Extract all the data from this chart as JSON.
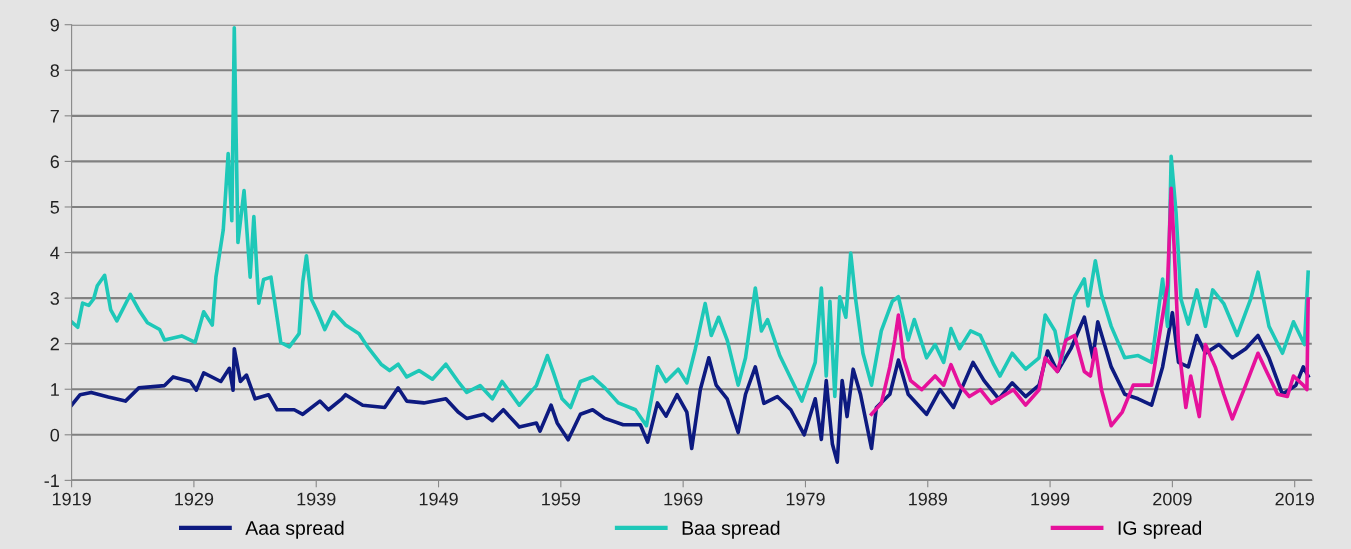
{
  "chart_data": {
    "type": "line",
    "xlim": [
      1919,
      2020.4
    ],
    "xticks": [
      1919,
      1929,
      1939,
      1949,
      1959,
      1969,
      1979,
      1989,
      1999,
      2009,
      2019
    ],
    "ylim": [
      -1,
      9
    ],
    "yticks": [
      -1,
      0,
      1,
      2,
      3,
      4,
      5,
      6,
      7,
      8,
      9
    ],
    "grid": "y",
    "legend": "bottom",
    "line_style": "solid",
    "marker": "none",
    "series": [
      {
        "name": "Aaa spread",
        "color": "#0d1a80",
        "x": [
          1919.0,
          1919.7,
          1920.6,
          1922.0,
          1923.4,
          1924.5,
          1926.6,
          1927.3,
          1928.7,
          1929.2,
          1929.8,
          1931.2,
          1931.9,
          1932.2,
          1932.3,
          1932.8,
          1933.3,
          1934.0,
          1935.1,
          1935.8,
          1937.2,
          1937.9,
          1939.3,
          1940.0,
          1941.1,
          1941.4,
          1942.8,
          1944.6,
          1945.7,
          1946.4,
          1947.8,
          1949.6,
          1950.6,
          1951.3,
          1952.7,
          1953.4,
          1954.3,
          1955.6,
          1957.0,
          1957.3,
          1958.2,
          1958.7,
          1959.6,
          1960.6,
          1961.6,
          1962.6,
          1964.1,
          1965.5,
          1966.1,
          1966.9,
          1967.6,
          1968.5,
          1969.3,
          1969.7,
          1970.4,
          1971.1,
          1971.7,
          1972.6,
          1973.5,
          1974.1,
          1974.9,
          1975.6,
          1976.7,
          1977.8,
          1978.9,
          1979.8,
          1980.3,
          1980.7,
          1981.2,
          1981.6,
          1982.0,
          1982.4,
          1982.9,
          1983.5,
          1984.4,
          1984.8,
          1985.9,
          1986.6,
          1987.4,
          1988.9,
          1990.0,
          1991.1,
          1992.7,
          1993.6,
          1994.8,
          1995.9,
          1997.0,
          1998.1,
          1998.8,
          1999.6,
          2000.7,
          2001.8,
          2002.5,
          2002.9,
          2004.0,
          2005.1,
          2006.2,
          2007.3,
          2008.2,
          2009.0,
          2009.5,
          2010.3,
          2011.0,
          2011.7,
          2012.8,
          2013.9,
          2015.0,
          2016.0,
          2016.9,
          2018.0,
          2019.1,
          2019.7,
          2020.1
        ],
        "values": [
          0.65,
          0.88,
          0.93,
          0.83,
          0.74,
          1.03,
          1.08,
          1.27,
          1.17,
          0.98,
          1.36,
          1.17,
          1.46,
          0.98,
          1.89,
          1.17,
          1.31,
          0.79,
          0.88,
          0.55,
          0.55,
          0.45,
          0.74,
          0.55,
          0.79,
          0.88,
          0.65,
          0.6,
          1.03,
          0.74,
          0.7,
          0.79,
          0.5,
          0.36,
          0.45,
          0.31,
          0.55,
          0.17,
          0.26,
          0.08,
          0.65,
          0.26,
          -0.11,
          0.45,
          0.55,
          0.36,
          0.22,
          0.22,
          -0.16,
          0.7,
          0.41,
          0.88,
          0.5,
          -0.3,
          0.99,
          1.69,
          1.09,
          0.79,
          0.05,
          0.89,
          1.49,
          0.69,
          0.84,
          0.55,
          0.0,
          0.79,
          -0.1,
          1.19,
          -0.2,
          -0.6,
          1.19,
          0.4,
          1.44,
          0.89,
          -0.3,
          0.6,
          0.89,
          1.64,
          0.89,
          0.45,
          0.99,
          0.6,
          1.59,
          1.19,
          0.79,
          1.14,
          0.84,
          1.09,
          1.84,
          1.39,
          1.89,
          2.58,
          1.69,
          2.48,
          1.49,
          0.89,
          0.79,
          0.65,
          1.49,
          2.68,
          1.59,
          1.49,
          2.18,
          1.79,
          1.98,
          1.69,
          1.89,
          2.18,
          1.69,
          0.89,
          1.09,
          1.49,
          1.29
        ]
      },
      {
        "name": "Baa spread",
        "color": "#1ec8b8",
        "x": [
          1919.0,
          1919.5,
          1919.9,
          1920.4,
          1920.8,
          1921.1,
          1921.7,
          1922.2,
          1922.7,
          1923.8,
          1924.5,
          1925.2,
          1926.2,
          1926.6,
          1928.0,
          1929.1,
          1929.8,
          1930.5,
          1930.8,
          1931.4,
          1931.8,
          1932.1,
          1932.3,
          1932.6,
          1933.1,
          1933.6,
          1933.9,
          1934.3,
          1934.7,
          1935.3,
          1936.1,
          1936.8,
          1937.6,
          1937.9,
          1938.2,
          1938.6,
          1939.1,
          1939.7,
          1940.4,
          1941.4,
          1942.5,
          1943.2,
          1944.3,
          1945.0,
          1945.7,
          1946.4,
          1947.4,
          1948.5,
          1949.6,
          1950.6,
          1951.3,
          1952.4,
          1953.4,
          1954.2,
          1955.6,
          1957.0,
          1957.9,
          1958.4,
          1959.1,
          1959.8,
          1960.6,
          1961.6,
          1962.6,
          1963.7,
          1965.1,
          1966.0,
          1966.9,
          1967.6,
          1968.6,
          1969.3,
          1970.0,
          1970.8,
          1971.3,
          1971.9,
          1972.6,
          1973.5,
          1974.1,
          1974.9,
          1975.4,
          1975.9,
          1976.9,
          1978.7,
          1979.8,
          1980.3,
          1980.7,
          1981.0,
          1981.4,
          1981.8,
          1982.3,
          1982.7,
          1983.1,
          1983.7,
          1984.4,
          1985.2,
          1986.1,
          1986.6,
          1987.4,
          1987.9,
          1988.9,
          1989.6,
          1990.3,
          1990.9,
          1991.6,
          1992.5,
          1993.3,
          1994.4,
          1994.9,
          1995.9,
          1997.0,
          1998.1,
          1998.6,
          1999.4,
          1999.9,
          2001.0,
          2001.8,
          2002.1,
          2002.7,
          2003.2,
          2004.0,
          2005.1,
          2006.2,
          2007.3,
          2008.2,
          2008.6,
          2008.9,
          2009.3,
          2009.7,
          2010.3,
          2011.0,
          2011.7,
          2012.3,
          2013.2,
          2014.3,
          2015.4,
          2016.0,
          2016.9,
          2018.0,
          2018.9,
          2019.8,
          2020.1
        ],
        "values": [
          2.48,
          2.36,
          2.89,
          2.84,
          2.98,
          3.27,
          3.5,
          2.74,
          2.5,
          3.08,
          2.74,
          2.46,
          2.31,
          2.08,
          2.17,
          2.03,
          2.7,
          2.41,
          3.46,
          4.5,
          6.17,
          4.7,
          8.93,
          4.22,
          5.36,
          3.46,
          4.79,
          2.89,
          3.41,
          3.46,
          2.03,
          1.93,
          2.22,
          3.36,
          3.93,
          2.98,
          2.7,
          2.31,
          2.7,
          2.41,
          2.22,
          1.93,
          1.55,
          1.41,
          1.55,
          1.27,
          1.41,
          1.22,
          1.55,
          1.17,
          0.93,
          1.08,
          0.79,
          1.17,
          0.65,
          1.08,
          1.74,
          1.36,
          0.79,
          0.6,
          1.17,
          1.27,
          1.03,
          0.7,
          0.55,
          0.2,
          1.5,
          1.17,
          1.44,
          1.14,
          1.89,
          2.88,
          2.18,
          2.58,
          2.08,
          1.09,
          1.69,
          3.22,
          2.28,
          2.53,
          1.74,
          0.74,
          1.59,
          3.22,
          1.29,
          2.93,
          0.84,
          3.03,
          2.58,
          3.99,
          2.98,
          1.79,
          1.09,
          2.28,
          2.93,
          3.03,
          2.08,
          2.53,
          1.69,
          1.98,
          1.59,
          2.33,
          1.89,
          2.28,
          2.18,
          1.54,
          1.29,
          1.79,
          1.44,
          1.69,
          2.63,
          2.28,
          1.59,
          3.03,
          3.42,
          2.83,
          3.82,
          3.08,
          2.38,
          1.69,
          1.74,
          1.59,
          3.42,
          2.38,
          6.11,
          4.87,
          2.98,
          2.43,
          3.18,
          2.38,
          3.18,
          2.88,
          2.18,
          2.98,
          3.57,
          2.38,
          1.79,
          2.48,
          1.98,
          3.57
        ]
      },
      {
        "name": "IG spread",
        "color": "#e6119b",
        "x": [
          1984.4,
          1985.2,
          1985.9,
          1986.3,
          1986.6,
          1987.0,
          1987.6,
          1988.5,
          1989.6,
          1990.3,
          1990.9,
          1991.6,
          1992.4,
          1993.3,
          1994.2,
          1995.1,
          1996.0,
          1997.0,
          1998.1,
          1998.6,
          1999.6,
          2000.3,
          2001.0,
          2001.8,
          2002.3,
          2002.7,
          2003.2,
          2004.0,
          2004.9,
          2005.8,
          2007.3,
          2008.0,
          2008.6,
          2008.9,
          2009.1,
          2009.5,
          2010.1,
          2010.5,
          2011.2,
          2011.7,
          2012.5,
          2013.2,
          2013.9,
          2015.0,
          2016.0,
          2016.7,
          2017.6,
          2018.4,
          2018.9,
          2019.7,
          2020.0,
          2020.1
        ],
        "values": [
          0.45,
          0.69,
          1.49,
          2.08,
          2.63,
          1.69,
          1.19,
          0.99,
          1.29,
          1.09,
          1.54,
          1.09,
          0.84,
          0.99,
          0.69,
          0.84,
          0.99,
          0.65,
          0.99,
          1.69,
          1.39,
          2.08,
          2.18,
          1.39,
          1.29,
          1.89,
          0.99,
          0.2,
          0.5,
          1.09,
          1.09,
          2.28,
          3.28,
          5.41,
          4.37,
          1.98,
          0.6,
          1.29,
          0.4,
          1.98,
          1.49,
          0.89,
          0.35,
          1.09,
          1.79,
          1.39,
          0.89,
          0.84,
          1.29,
          1.09,
          0.99,
          2.98
        ]
      }
    ]
  }
}
